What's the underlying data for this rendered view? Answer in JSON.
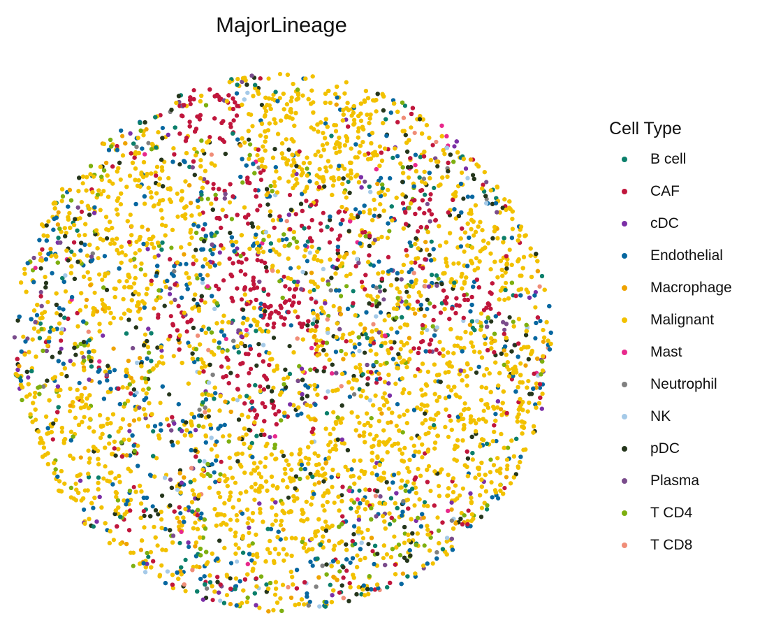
{
  "chart_data": {
    "type": "scatter",
    "title": "MajorLineage",
    "xlabel": "",
    "ylabel": "",
    "axes_visible": false,
    "grid": false,
    "legend": {
      "title": "Cell Type",
      "placement": "right"
    },
    "series": [
      {
        "name": "B cell",
        "color": "#0B7F6B",
        "approx_share": 0.03
      },
      {
        "name": "CAF",
        "color": "#C0163C",
        "approx_share": 0.15
      },
      {
        "name": "cDC",
        "color": "#7B2FA6",
        "approx_share": 0.02
      },
      {
        "name": "Endothelial",
        "color": "#0767A0",
        "approx_share": 0.1
      },
      {
        "name": "Macrophage",
        "color": "#EFA300",
        "approx_share": 0.04
      },
      {
        "name": "Malignant",
        "color": "#F2C100",
        "approx_share": 0.5
      },
      {
        "name": "Mast",
        "color": "#E8288C",
        "approx_share": 0.005
      },
      {
        "name": "Neutrophil",
        "color": "#808080",
        "approx_share": 0.01
      },
      {
        "name": "NK",
        "color": "#A5CAE8",
        "approx_share": 0.005
      },
      {
        "name": "pDC",
        "color": "#25361C",
        "approx_share": 0.05
      },
      {
        "name": "Plasma",
        "color": "#7A4C8C",
        "approx_share": 0.02
      },
      {
        "name": "T CD4",
        "color": "#7DAF10",
        "approx_share": 0.05
      },
      {
        "name": "T CD8",
        "color": "#F08D78",
        "approx_share": 0.01
      }
    ]
  }
}
